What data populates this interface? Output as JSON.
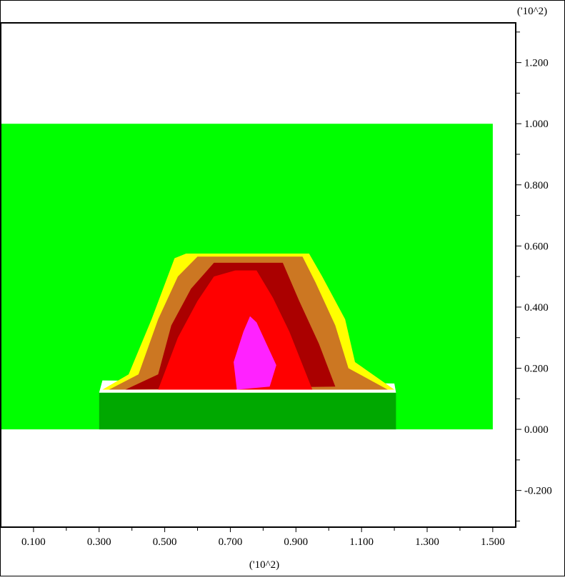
{
  "chart_data": {
    "type": "heatmap",
    "title": "",
    "xlabel": "",
    "ylabel": "",
    "x_exponent_label": "('10^2)",
    "y_exponent_label": "('10^2)",
    "xlim": [
      0.0,
      1.57
    ],
    "ylim": [
      -0.32,
      1.33
    ],
    "x_ticks": [
      {
        "value": 0.1,
        "label": "0.100"
      },
      {
        "value": 0.3,
        "label": "0.300"
      },
      {
        "value": 0.5,
        "label": "0.500"
      },
      {
        "value": 0.7,
        "label": "0.700"
      },
      {
        "value": 0.9,
        "label": "0.900"
      },
      {
        "value": 1.1,
        "label": "1.100"
      },
      {
        "value": 1.3,
        "label": "1.300"
      },
      {
        "value": 1.5,
        "label": "1.500"
      }
    ],
    "y_ticks": [
      {
        "value": 1.2,
        "label": "1.200"
      },
      {
        "value": 1.0,
        "label": "1.000"
      },
      {
        "value": 0.8,
        "label": "0.800"
      },
      {
        "value": 0.6,
        "label": "0.600"
      },
      {
        "value": 0.4,
        "label": "0.400"
      },
      {
        "value": 0.2,
        "label": "0.200"
      },
      {
        "value": 0.0,
        "label": "0.000"
      },
      {
        "value": -0.2,
        "label": "-0.200"
      }
    ],
    "grid": false,
    "regions": [
      {
        "name": "domain",
        "color": "#00ff00",
        "points": [
          [
            0.0,
            0.0
          ],
          [
            1.5,
            0.0
          ],
          [
            1.5,
            1.0
          ],
          [
            0.0,
            1.0
          ]
        ]
      },
      {
        "name": "foundation",
        "color": "#00a800",
        "points": [
          [
            0.3,
            0.0
          ],
          [
            1.205,
            0.0
          ],
          [
            1.205,
            0.12
          ],
          [
            0.3,
            0.12
          ]
        ]
      },
      {
        "name": "gap",
        "color": "#ffffff",
        "points": [
          [
            0.3,
            0.12
          ],
          [
            1.205,
            0.12
          ],
          [
            1.2,
            0.15
          ],
          [
            0.31,
            0.16
          ]
        ]
      },
      {
        "name": "band-yellow",
        "color": "#ffff00",
        "points": [
          [
            0.31,
            0.13
          ],
          [
            0.39,
            0.18
          ],
          [
            0.46,
            0.36
          ],
          [
            0.53,
            0.56
          ],
          [
            0.565,
            0.575
          ],
          [
            0.94,
            0.575
          ],
          [
            0.98,
            0.5
          ],
          [
            1.05,
            0.36
          ],
          [
            1.08,
            0.22
          ],
          [
            1.2,
            0.13
          ]
        ]
      },
      {
        "name": "band-orange",
        "color": "#cc7722",
        "points": [
          [
            0.33,
            0.13
          ],
          [
            0.42,
            0.18
          ],
          [
            0.48,
            0.36
          ],
          [
            0.54,
            0.5
          ],
          [
            0.6,
            0.565
          ],
          [
            0.92,
            0.565
          ],
          [
            0.96,
            0.48
          ],
          [
            1.02,
            0.34
          ],
          [
            1.06,
            0.2
          ],
          [
            1.18,
            0.13
          ]
        ]
      },
      {
        "name": "band-darkred",
        "color": "#aa0000",
        "points": [
          [
            0.38,
            0.13
          ],
          [
            0.48,
            0.18
          ],
          [
            0.52,
            0.34
          ],
          [
            0.58,
            0.46
          ],
          [
            0.65,
            0.545
          ],
          [
            0.86,
            0.545
          ],
          [
            0.91,
            0.42
          ],
          [
            0.97,
            0.28
          ],
          [
            1.02,
            0.14
          ]
        ]
      },
      {
        "name": "band-red",
        "color": "#ff0000",
        "points": [
          [
            0.48,
            0.13
          ],
          [
            0.54,
            0.3
          ],
          [
            0.6,
            0.42
          ],
          [
            0.65,
            0.5
          ],
          [
            0.715,
            0.52
          ],
          [
            0.78,
            0.52
          ],
          [
            0.83,
            0.43
          ],
          [
            0.88,
            0.32
          ],
          [
            0.95,
            0.13
          ]
        ]
      },
      {
        "name": "core-magenta",
        "color": "#ff22ff",
        "points": [
          [
            0.72,
            0.13
          ],
          [
            0.71,
            0.22
          ],
          [
            0.74,
            0.32
          ],
          [
            0.76,
            0.37
          ],
          [
            0.78,
            0.35
          ],
          [
            0.81,
            0.28
          ],
          [
            0.84,
            0.21
          ],
          [
            0.82,
            0.14
          ]
        ]
      }
    ]
  }
}
